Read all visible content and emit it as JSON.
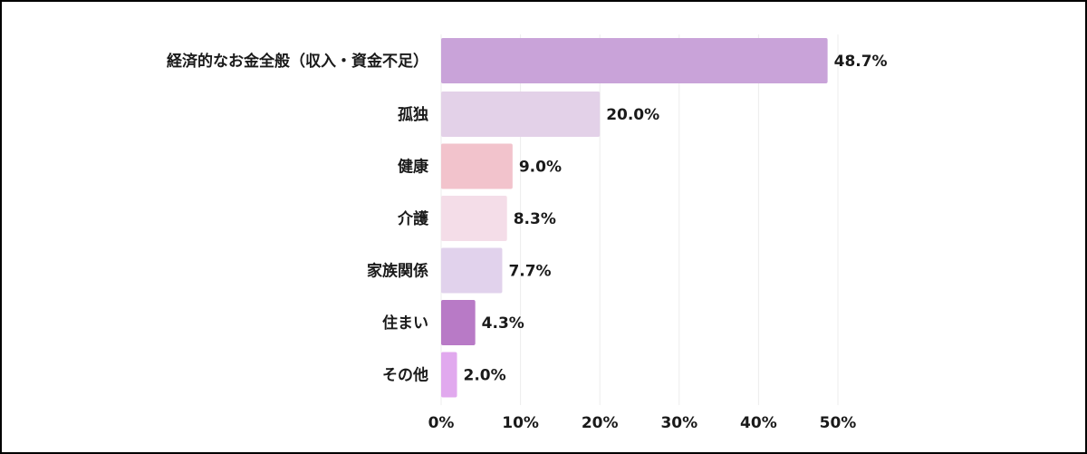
{
  "chart_data": {
    "type": "bar",
    "orientation": "horizontal",
    "title": "",
    "xlabel": "",
    "ylabel": "",
    "categories": [
      "経済的なお金全般（収入・資金不足）",
      "孤独",
      "健康",
      "介護",
      "家族関係",
      "住まい",
      "その他"
    ],
    "values": [
      48.7,
      20.0,
      9.0,
      8.3,
      7.7,
      4.3,
      2.0
    ],
    "value_labels": [
      "48.7%",
      "20.0%",
      "9.0%",
      "8.3%",
      "7.7%",
      "4.3%",
      "2.0%"
    ],
    "bar_colors": [
      "#c9a3d9",
      "#e3d1e8",
      "#f2c3cc",
      "#f4dde8",
      "#e1d2ec",
      "#b87ac6",
      "#e1a9ee"
    ],
    "xlim": [
      0,
      50
    ],
    "x_ticks": [
      0,
      10,
      20,
      30,
      40,
      50
    ],
    "x_tick_labels": [
      "0%",
      "10%",
      "20%",
      "30%",
      "40%",
      "50%"
    ],
    "grid": true,
    "legend": "none"
  }
}
